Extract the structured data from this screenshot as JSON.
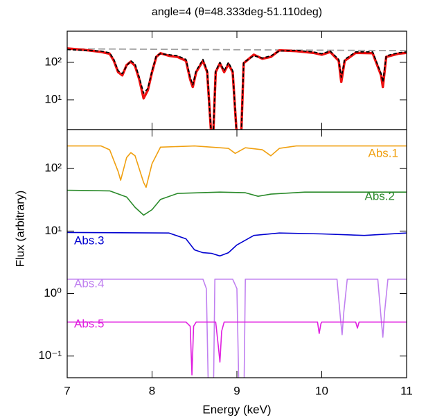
{
  "chart_data": [
    {
      "type": "line",
      "title": "angle=4 (θ=48.333deg-51.110deg)",
      "log_y": true,
      "xlim": [
        7,
        11
      ],
      "ylim": [
        1.6,
        680
      ],
      "xticks": [
        7,
        8,
        9,
        10,
        11
      ],
      "yticks": [
        {
          "value": 10,
          "label": "10¹"
        },
        {
          "value": 100,
          "label": "10²"
        }
      ],
      "series": [
        {
          "color": "#a0a0a0",
          "dash": true,
          "x": [
            7,
            11
          ],
          "values": [
            230,
            205
          ]
        },
        {
          "color": "#ee1111",
          "dash": false,
          "x": [
            7.0,
            7.2,
            7.4,
            7.5,
            7.55,
            7.6,
            7.65,
            7.7,
            7.75,
            7.8,
            7.85,
            7.9,
            7.95,
            8.0,
            8.05,
            8.1,
            8.2,
            8.3,
            8.4,
            8.45,
            8.48,
            8.52,
            8.6,
            8.65,
            8.7,
            8.72,
            8.75,
            8.8,
            8.85,
            8.9,
            8.95,
            9.0,
            9.05,
            9.08,
            9.2,
            9.3,
            9.4,
            9.5,
            9.7,
            9.9,
            10.0,
            10.1,
            10.2,
            10.23,
            10.27,
            10.4,
            10.6,
            10.7,
            10.72,
            10.76,
            10.9,
            11.0
          ],
          "values": [
            235,
            215,
            190,
            170,
            110,
            55,
            45,
            85,
            105,
            80,
            35,
            11,
            18,
            55,
            140,
            175,
            150,
            140,
            110,
            35,
            22,
            55,
            110,
            55,
            1,
            1,
            55,
            95,
            55,
            90,
            55,
            1,
            1,
            95,
            160,
            125,
            140,
            210,
            200,
            180,
            160,
            190,
            110,
            30,
            110,
            180,
            175,
            45,
            22,
            140,
            170,
            180
          ]
        },
        {
          "color": "#000000",
          "dash": true,
          "x": [
            7.0,
            7.2,
            7.4,
            7.5,
            7.55,
            7.6,
            7.65,
            7.7,
            7.75,
            7.8,
            7.85,
            7.9,
            7.95,
            8.0,
            8.05,
            8.1,
            8.2,
            8.3,
            8.4,
            8.45,
            8.48,
            8.52,
            8.6,
            8.65,
            8.7,
            8.72,
            8.75,
            8.8,
            8.85,
            8.9,
            8.95,
            9.0,
            9.05,
            9.08,
            9.2,
            9.3,
            9.4,
            9.5,
            9.7,
            9.9,
            10.0,
            10.1,
            10.2,
            10.23,
            10.27,
            10.4,
            10.6,
            10.7,
            10.72,
            10.76,
            10.9,
            11.0
          ],
          "values": [
            220,
            210,
            200,
            180,
            120,
            60,
            50,
            80,
            110,
            90,
            40,
            15,
            20,
            60,
            150,
            170,
            160,
            150,
            120,
            40,
            25,
            60,
            120,
            60,
            1,
            1,
            60,
            100,
            60,
            100,
            60,
            1,
            1,
            100,
            150,
            130,
            150,
            200,
            210,
            190,
            170,
            200,
            120,
            40,
            120,
            190,
            190,
            50,
            30,
            150,
            180,
            190
          ]
        }
      ]
    },
    {
      "type": "line",
      "log_y": true,
      "x_label": "Energy (keV)",
      "y_label": "Flux (arbitrary)",
      "xlim": [
        7,
        11
      ],
      "ylim": [
        0.045,
        420
      ],
      "xticks": [
        7,
        8,
        9,
        10,
        11
      ],
      "yticks": [
        {
          "value": 0.1,
          "label": "10⁻¹"
        },
        {
          "value": 1,
          "label": "10⁰"
        },
        {
          "value": 10,
          "label": "10¹"
        },
        {
          "value": 100,
          "label": "10²"
        }
      ],
      "series": [
        {
          "name": "Abs.1",
          "color": "#f0a010",
          "x": [
            7,
            7.4,
            7.5,
            7.6,
            7.63,
            7.7,
            7.75,
            7.8,
            7.9,
            7.93,
            8.0,
            8.1,
            8.5,
            8.9,
            8.98,
            9.1,
            9.3,
            9.4,
            9.5,
            9.7,
            11
          ],
          "values": [
            230,
            230,
            200,
            90,
            65,
            150,
            180,
            160,
            60,
            50,
            120,
            220,
            230,
            210,
            175,
            215,
            200,
            160,
            210,
            230,
            230
          ]
        },
        {
          "name": "Abs.2",
          "color": "#2a8a2a",
          "x": [
            7,
            7.5,
            7.7,
            7.8,
            7.9,
            8.0,
            8.1,
            8.3,
            8.8,
            9.1,
            9.25,
            9.4,
            9.8,
            11
          ],
          "values": [
            45,
            44,
            35,
            24,
            18,
            22,
            32,
            40,
            42,
            41,
            36,
            39,
            42,
            42
          ]
        },
        {
          "name": "Abs.3",
          "color": "#0000d0",
          "x": [
            7,
            8.2,
            8.4,
            8.5,
            8.6,
            8.7,
            8.8,
            8.9,
            9.0,
            9.2,
            9.5,
            10,
            10.5,
            11
          ],
          "values": [
            9.5,
            9.3,
            7.5,
            5,
            4.5,
            4.4,
            4.0,
            4.5,
            6,
            8.5,
            9.3,
            9.0,
            8.5,
            9.3
          ]
        },
        {
          "name": "Abs.4",
          "color": "#c080f0",
          "x": [
            7,
            8.6,
            8.64,
            8.67,
            8.72,
            8.74,
            8.95,
            9.0,
            9.03,
            9.08,
            9.1,
            10.18,
            10.22,
            10.24,
            10.26,
            10.3,
            10.66,
            10.7,
            10.72,
            10.74,
            10.78,
            11
          ],
          "values": [
            1.7,
            1.7,
            1.2,
            0.01,
            0.01,
            1.7,
            1.7,
            1.2,
            0.01,
            0.01,
            1.7,
            1.7,
            0.4,
            0.22,
            0.5,
            1.7,
            1.7,
            0.4,
            0.2,
            0.5,
            1.7,
            1.7
          ]
        },
        {
          "name": "Abs.5",
          "color": "#e020e0",
          "x": [
            7,
            8.4,
            8.45,
            8.47,
            8.49,
            8.52,
            8.75,
            8.78,
            8.8,
            8.82,
            8.85,
            9.95,
            9.97,
            9.99,
            10.0,
            10.4,
            10.42,
            10.44,
            11
          ],
          "values": [
            0.35,
            0.35,
            0.3,
            0.05,
            0.3,
            0.35,
            0.35,
            0.15,
            0.08,
            0.25,
            0.35,
            0.35,
            0.23,
            0.33,
            0.35,
            0.35,
            0.28,
            0.35,
            0.35
          ]
        }
      ]
    }
  ]
}
